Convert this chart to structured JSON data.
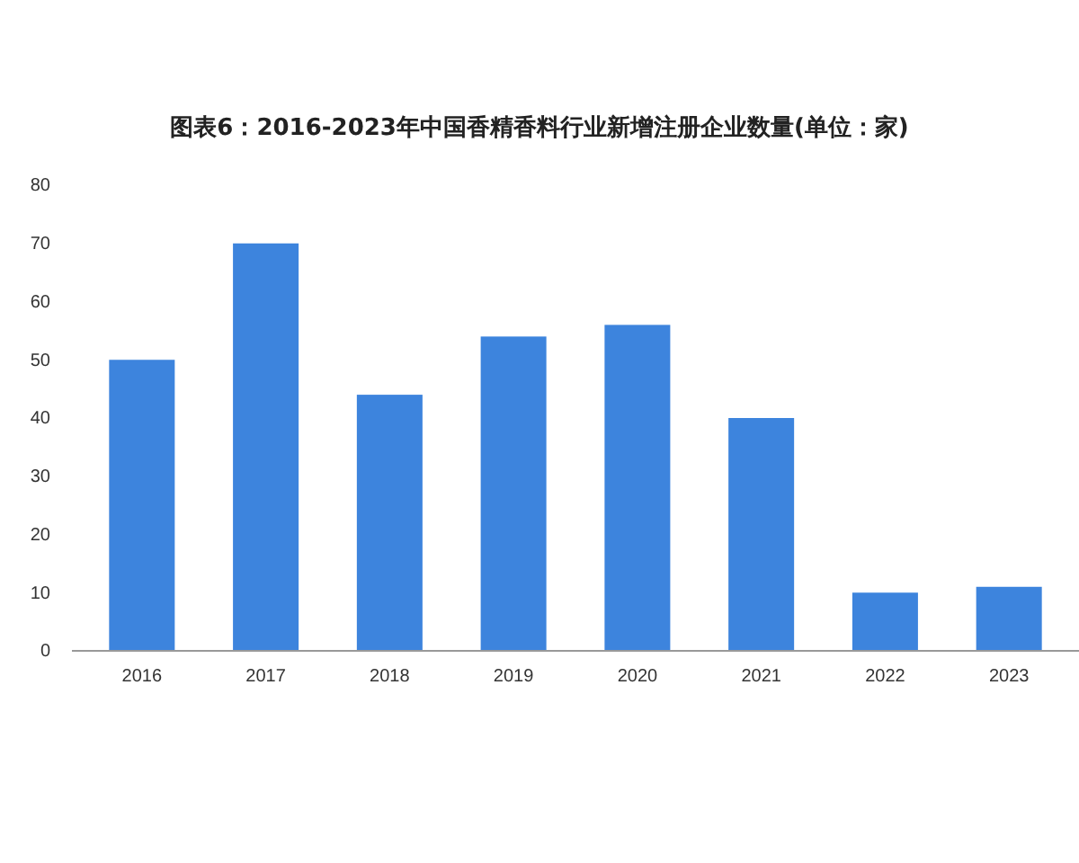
{
  "chart_data": {
    "type": "bar",
    "title": "图表6：2016-2023年中国香精香料行业新增注册企业数量(单位：家)",
    "categories": [
      "2016",
      "2017",
      "2018",
      "2019",
      "2020",
      "2021",
      "2022",
      "2023"
    ],
    "values": [
      50,
      70,
      44,
      54,
      56,
      40,
      10,
      11
    ],
    "color": "#3d84dd",
    "ylim": [
      0,
      80
    ],
    "yticks": [
      0,
      10,
      20,
      30,
      40,
      50,
      60,
      70,
      80
    ],
    "grid": false
  }
}
